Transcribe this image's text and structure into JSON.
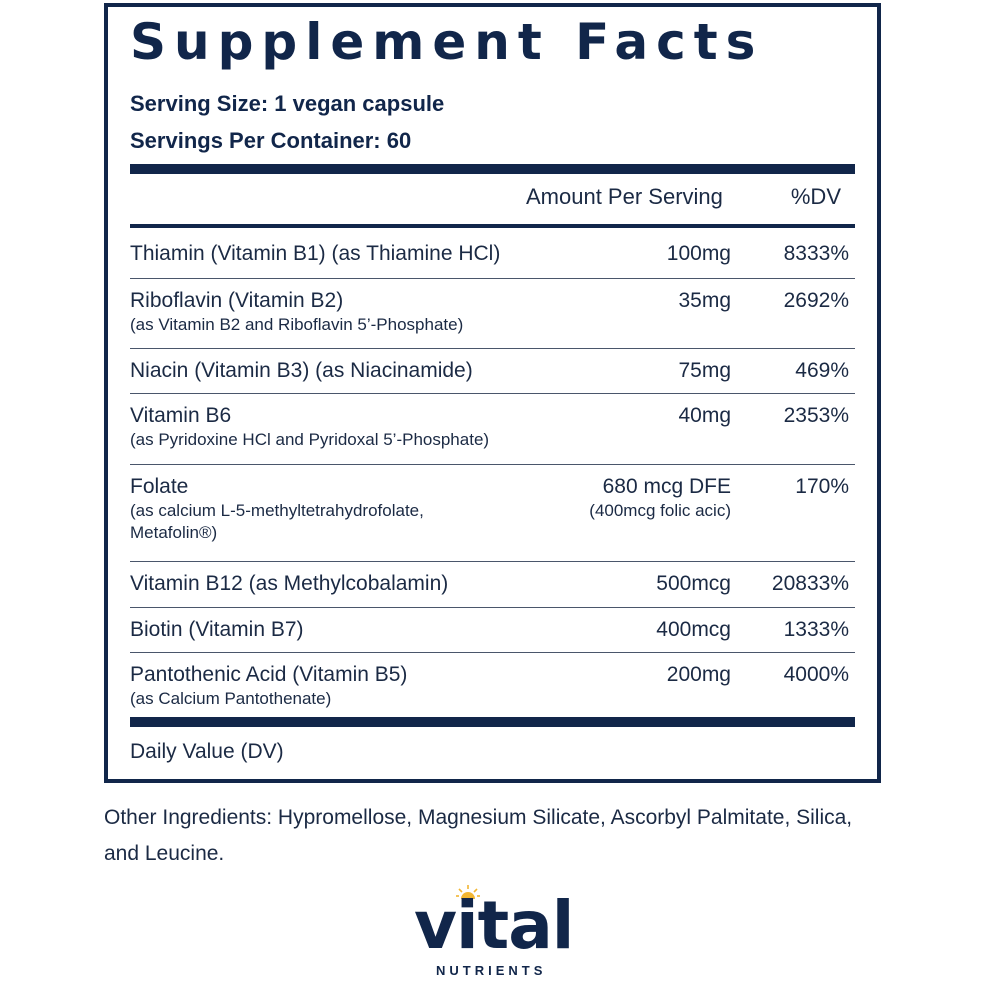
{
  "panel": {
    "title": "Supplement Facts",
    "serving_size": "Serving Size: 1 vegan capsule",
    "servings_per_container": "Servings Per Container: 60",
    "header_amount": "Amount Per Serving",
    "header_dv": "%DV",
    "rows": [
      {
        "name": "Thiamin (Vitamin B1) (as Thiamine HCl)",
        "sub": "",
        "amount": "100mg",
        "amount_sub": "",
        "dv": "8333%"
      },
      {
        "name": "Riboflavin (Vitamin B2)",
        "sub": "(as Vitamin B2 and Riboflavin 5’-Phosphate)",
        "amount": "35mg",
        "amount_sub": "",
        "dv": "2692%"
      },
      {
        "name": "Niacin (Vitamin B3) (as Niacinamide)",
        "sub": "",
        "amount": "75mg",
        "amount_sub": "",
        "dv": "469%"
      },
      {
        "name": "Vitamin B6",
        "sub": "(as Pyridoxine HCl and Pyridoxal 5’-Phosphate)",
        "amount": "40mg",
        "amount_sub": "",
        "dv": "2353%"
      },
      {
        "name": "Folate",
        "sub": "(as calcium L-5-methyltetrahydrofolate,",
        "sub2": "Metafolin®)",
        "amount": "680 mcg  DFE",
        "amount_sub": "(400mcg folic acic)",
        "dv": "170%"
      },
      {
        "name": "Vitamin B12 (as Methylcobalamin)",
        "sub": "",
        "amount": "500mcg",
        "amount_sub": "",
        "dv": "20833%"
      },
      {
        "name": "Biotin (Vitamin B7)",
        "sub": "",
        "amount": "400mcg",
        "amount_sub": "",
        "dv": "1333%"
      },
      {
        "name": "Pantothenic Acid (Vitamin B5)",
        "sub": "(as Calcium Pantothenate)",
        "amount": "200mg",
        "amount_sub": "",
        "dv": "4000%"
      }
    ],
    "footnote": "Daily Value (DV)"
  },
  "other_ingredients": "Other Ingredients: Hypromellose, Magnesium Silicate, Ascorbyl Palmitate, Silica, and Leucine.",
  "brand": {
    "wordmark": "vital",
    "tagline": "NUTRIENTS",
    "icon": "sun-icon"
  },
  "colors": {
    "navy": "#11264a",
    "sun": "#f2b632"
  }
}
